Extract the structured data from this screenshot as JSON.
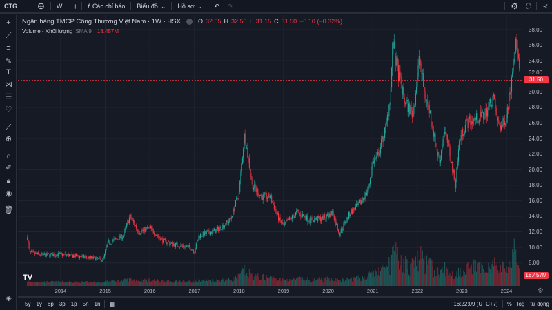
{
  "topbar": {
    "symbol": "CTG",
    "interval": "W",
    "indicators_label": "Các chỉ báo",
    "chart_label": "Biểu đồ",
    "profile_label": "Hồ sơ"
  },
  "legend": {
    "title": "Ngân hàng TMCP Công Thương Việt Nam · 1W · HSX",
    "o_label": "O",
    "o": "32.05",
    "h_label": "H",
    "h": "32.50",
    "l_label": "L",
    "l": "31.15",
    "c_label": "C",
    "c": "31.50",
    "change": "−0.10 (−0.32%)",
    "volume_label": "Volume - Khối lượng",
    "sma_label": "SMA 9",
    "volume_value": "18.457M"
  },
  "colors": {
    "up": "#26a69a",
    "down": "#f23645",
    "background": "#161a25",
    "grid": "#222631"
  },
  "chart_data": {
    "type": "candlestick",
    "y_ticks": [
      "38.00",
      "36.00",
      "34.00",
      "32.00",
      "30.00",
      "28.00",
      "26.00",
      "24.00",
      "22.00",
      "20.00",
      "18.00",
      "16.00",
      "14.00",
      "12.00",
      "10.00",
      "8.00"
    ],
    "x_ticks": [
      "2014",
      "2015",
      "2016",
      "2017",
      "2018",
      "2019",
      "2020",
      "2021",
      "2022",
      "2023",
      "2024"
    ],
    "ylim": [
      6,
      38
    ],
    "last_price": "31.50",
    "last_volume": "18.457M",
    "price_path": [
      [
        2013.25,
        11.3
      ],
      [
        2013.3,
        9.3
      ],
      [
        2013.6,
        9.0
      ],
      [
        2014.0,
        9.1
      ],
      [
        2014.5,
        8.8
      ],
      [
        2014.95,
        8.4
      ],
      [
        2015.05,
        10.5
      ],
      [
        2015.4,
        11.5
      ],
      [
        2015.55,
        14.0
      ],
      [
        2015.75,
        12.0
      ],
      [
        2016.0,
        12.5
      ],
      [
        2016.3,
        10.8
      ],
      [
        2016.6,
        10.3
      ],
      [
        2016.9,
        10.0
      ],
      [
        2017.0,
        9.5
      ],
      [
        2017.1,
        11.5
      ],
      [
        2017.5,
        12.2
      ],
      [
        2017.8,
        13.5
      ],
      [
        2018.0,
        17.0
      ],
      [
        2018.12,
        24.6
      ],
      [
        2018.3,
        18.0
      ],
      [
        2018.5,
        16.5
      ],
      [
        2018.7,
        16.5
      ],
      [
        2018.9,
        13.5
      ],
      [
        2019.0,
        12.8
      ],
      [
        2019.3,
        14.5
      ],
      [
        2019.6,
        13.5
      ],
      [
        2019.9,
        13.8
      ],
      [
        2020.1,
        14.5
      ],
      [
        2020.25,
        11.8
      ],
      [
        2020.5,
        14.5
      ],
      [
        2020.7,
        15.5
      ],
      [
        2020.9,
        17.5
      ],
      [
        2021.0,
        21.0
      ],
      [
        2021.1,
        21.5
      ],
      [
        2021.3,
        25.5
      ],
      [
        2021.4,
        30.0
      ],
      [
        2021.45,
        36.5
      ],
      [
        2021.55,
        33.0
      ],
      [
        2021.7,
        29.0
      ],
      [
        2021.9,
        27.0
      ],
      [
        2022.0,
        32.0
      ],
      [
        2022.05,
        34.5
      ],
      [
        2022.15,
        30.0
      ],
      [
        2022.3,
        27.0
      ],
      [
        2022.4,
        23.5
      ],
      [
        2022.5,
        21.0
      ],
      [
        2022.6,
        25.0
      ],
      [
        2022.7,
        23.0
      ],
      [
        2022.85,
        18.0
      ],
      [
        2022.95,
        24.0
      ],
      [
        2023.1,
        26.0
      ],
      [
        2023.3,
        26.5
      ],
      [
        2023.5,
        27.0
      ],
      [
        2023.6,
        28.0
      ],
      [
        2023.7,
        29.5
      ],
      [
        2023.8,
        26.0
      ],
      [
        2023.9,
        25.5
      ],
      [
        2024.0,
        27.0
      ],
      [
        2024.1,
        31.0
      ],
      [
        2024.15,
        34.5
      ],
      [
        2024.2,
        36.0
      ],
      [
        2024.25,
        35.5
      ],
      [
        2024.3,
        31.5
      ]
    ]
  },
  "bottombar": {
    "ranges": [
      "5y",
      "1y",
      "6p",
      "3p",
      "1p",
      "5n",
      "1n"
    ],
    "time": "16:22:09 (UTC+7)",
    "percent": "%",
    "log": "log",
    "auto": "tự động"
  }
}
